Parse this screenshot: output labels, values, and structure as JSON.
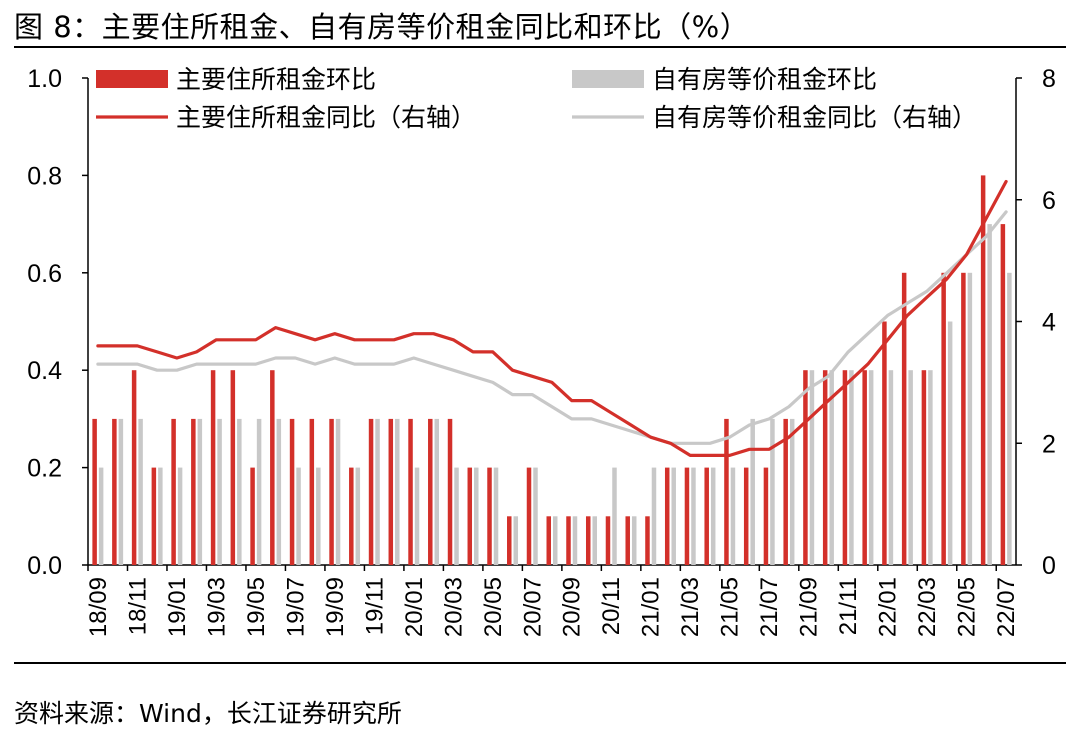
{
  "figure": {
    "title": "图 8：主要住所租金、自有房等价租金同比和环比（%）",
    "source": "资料来源：Wind，长江证券研究所"
  },
  "colors": {
    "red": "#d3302a",
    "gray": "#c8c8c8",
    "axis": "#000000"
  },
  "chart_data": {
    "type": "bar+line",
    "months": [
      "18/09",
      "18/10",
      "18/11",
      "18/12",
      "19/01",
      "19/02",
      "19/03",
      "19/04",
      "19/05",
      "19/06",
      "19/07",
      "19/08",
      "19/09",
      "19/10",
      "19/11",
      "19/12",
      "20/01",
      "20/02",
      "20/03",
      "20/04",
      "20/05",
      "20/06",
      "20/07",
      "20/08",
      "20/09",
      "20/10",
      "20/11",
      "20/12",
      "21/01",
      "21/02",
      "21/03",
      "21/04",
      "21/05",
      "21/06",
      "21/07",
      "21/08",
      "21/09",
      "21/10",
      "21/11",
      "21/12",
      "22/01",
      "22/02",
      "22/03",
      "22/04",
      "22/05",
      "22/06",
      "22/07"
    ],
    "tick_labels": [
      "18/09",
      "18/11",
      "19/01",
      "19/03",
      "19/05",
      "19/07",
      "19/09",
      "19/11",
      "20/01",
      "20/03",
      "20/05",
      "20/07",
      "20/09",
      "20/11",
      "21/01",
      "21/03",
      "21/05",
      "21/07",
      "21/09",
      "21/11",
      "22/01",
      "22/03",
      "22/05",
      "22/07"
    ],
    "left_axis": {
      "min": 0.0,
      "max": 1.0,
      "ticks": [
        "0.0",
        "0.2",
        "0.4",
        "0.6",
        "0.8",
        "1.0"
      ]
    },
    "right_axis": {
      "min": 0,
      "max": 8,
      "ticks": [
        "0",
        "2",
        "4",
        "6",
        "8"
      ]
    },
    "series": [
      {
        "name": "主要住所租金环比",
        "type": "bar",
        "axis": "left",
        "color": "#d3302a",
        "values": [
          0.3,
          0.3,
          0.4,
          0.2,
          0.3,
          0.3,
          0.4,
          0.4,
          0.2,
          0.4,
          0.3,
          0.3,
          0.3,
          0.2,
          0.3,
          0.3,
          0.3,
          0.3,
          0.3,
          0.2,
          0.2,
          0.1,
          0.2,
          0.1,
          0.1,
          0.1,
          0.1,
          0.1,
          0.1,
          0.2,
          0.2,
          0.2,
          0.3,
          0.2,
          0.2,
          0.3,
          0.4,
          0.4,
          0.4,
          0.4,
          0.5,
          0.6,
          0.4,
          0.6,
          0.6,
          0.8,
          0.7
        ]
      },
      {
        "name": "自有房等价租金环比",
        "type": "bar",
        "axis": "left",
        "color": "#c8c8c8",
        "values": [
          0.2,
          0.3,
          0.3,
          0.2,
          0.2,
          0.3,
          0.3,
          0.3,
          0.3,
          0.3,
          0.2,
          0.2,
          0.3,
          0.2,
          0.3,
          0.3,
          0.2,
          0.3,
          0.2,
          0.2,
          0.2,
          0.1,
          0.2,
          0.1,
          0.1,
          0.1,
          0.2,
          0.1,
          0.2,
          0.2,
          0.2,
          0.2,
          0.2,
          0.3,
          0.3,
          0.3,
          0.4,
          0.4,
          0.4,
          0.4,
          0.4,
          0.4,
          0.4,
          0.5,
          0.6,
          0.7,
          0.6
        ]
      },
      {
        "name": "主要住所租金同比（右轴）",
        "type": "line",
        "axis": "right",
        "color": "#d3302a",
        "values": [
          3.6,
          3.6,
          3.6,
          3.5,
          3.4,
          3.5,
          3.7,
          3.7,
          3.7,
          3.9,
          3.8,
          3.7,
          3.8,
          3.7,
          3.7,
          3.7,
          3.8,
          3.8,
          3.7,
          3.5,
          3.5,
          3.2,
          3.1,
          3.0,
          2.7,
          2.7,
          2.5,
          2.3,
          2.1,
          2.0,
          1.8,
          1.8,
          1.8,
          1.9,
          1.9,
          2.1,
          2.4,
          2.7,
          3.0,
          3.3,
          3.7,
          4.1,
          4.4,
          4.7,
          5.1,
          5.7,
          6.3
        ]
      },
      {
        "name": "自有房等价租金同比（右轴）",
        "type": "line",
        "axis": "right",
        "color": "#c8c8c8",
        "values": [
          3.3,
          3.3,
          3.3,
          3.2,
          3.2,
          3.3,
          3.3,
          3.3,
          3.3,
          3.4,
          3.4,
          3.3,
          3.4,
          3.3,
          3.3,
          3.3,
          3.4,
          3.3,
          3.2,
          3.1,
          3.0,
          2.8,
          2.8,
          2.6,
          2.4,
          2.4,
          2.3,
          2.2,
          2.1,
          2.0,
          2.0,
          2.0,
          2.1,
          2.3,
          2.4,
          2.6,
          2.9,
          3.1,
          3.5,
          3.8,
          4.1,
          4.3,
          4.5,
          4.8,
          5.1,
          5.4,
          5.8
        ]
      }
    ],
    "legend": [
      {
        "label": "主要住所租金环比",
        "kind": "bar",
        "color": "#d3302a"
      },
      {
        "label": "自有房等价租金环比",
        "kind": "bar",
        "color": "#c8c8c8"
      },
      {
        "label": "主要住所租金同比（右轴）",
        "kind": "line",
        "color": "#d3302a"
      },
      {
        "label": "自有房等价租金同比（右轴）",
        "kind": "line",
        "color": "#c8c8c8"
      }
    ]
  }
}
